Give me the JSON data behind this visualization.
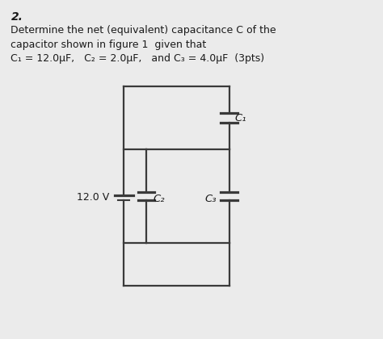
{
  "title_line1": "2.",
  "line1": "Determine the net (equivalent) capacitance C of the",
  "line2": "capacitor shown in figure 1  given that",
  "line3": "C₁ = 12.0μF,   C₂ = 2.0μF,   and C₃ = 4.0μF  (3pts)",
  "voltage_label": "12.0 V",
  "c1_label": "C₁",
  "c2_label": "C₂",
  "c3_label": "C₃",
  "bg_color": "#ebebeb",
  "line_color": "#3a3a3a",
  "text_color": "#1a1a1a",
  "font_size_text": 9.0,
  "font_size_labels": 9.0
}
